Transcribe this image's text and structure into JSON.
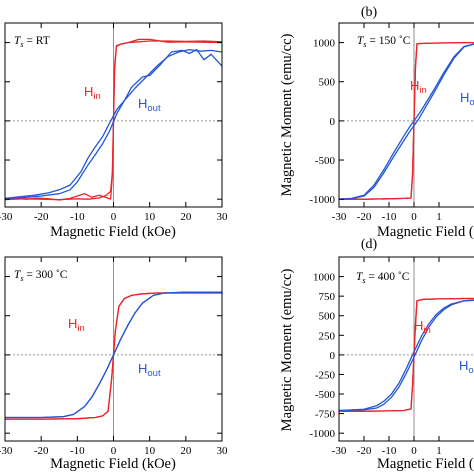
{
  "chart_data": [
    {
      "type": "line",
      "panel_letter": "",
      "sample_label": {
        "symbol": "T",
        "subscript": "s",
        "value": " = RT"
      },
      "xlabel": "Magnetic Field (kOe)",
      "ylabel": "",
      "xlim": [
        -30,
        30
      ],
      "ylim": [
        -1100,
        1250
      ],
      "xticks": [
        "-30",
        "-20",
        "-10",
        "0",
        "10",
        "20",
        "30"
      ],
      "yticks": [],
      "series": [
        {
          "name": "Hin",
          "color": "#e8262b",
          "x": [
            -30,
            -27,
            -24,
            -21,
            -18,
            -15,
            -12,
            -10,
            -8,
            -6,
            -4,
            -2,
            -0.8,
            -0.3,
            0.3,
            0.8,
            2,
            4,
            7,
            10,
            15,
            20,
            25,
            30
          ],
          "y": [
            -1000,
            -990,
            -1000,
            -985,
            -995,
            -1010,
            -990,
            -960,
            -930,
            -975,
            -950,
            -980,
            -1000,
            -700,
            650,
            950,
            980,
            1000,
            1010,
            1020,
            1020,
            1015,
            1020,
            1010
          ]
        },
        {
          "name": "Hin",
          "color": "#e8262b",
          "x": [
            30,
            25,
            20,
            15,
            10,
            7,
            4,
            2,
            0.8,
            0.3,
            -0.3,
            -0.8,
            -2,
            -4,
            -7,
            -10,
            -15,
            -20,
            -25,
            -30
          ],
          "y": [
            1000,
            1005,
            1010,
            1005,
            1040,
            1040,
            1000,
            980,
            960,
            700,
            -650,
            -900,
            -950,
            -985,
            -1000,
            -995,
            -1005,
            -1000,
            -995,
            -1005
          ]
        },
        {
          "name": "Hout",
          "color": "#2457d4",
          "x": [
            -30,
            -25,
            -20,
            -15,
            -12,
            -10,
            -7,
            -5,
            -3,
            -1,
            1,
            3,
            5,
            8,
            10,
            13,
            16,
            19,
            21,
            23,
            25,
            27,
            30
          ],
          "y": [
            -990,
            -980,
            -960,
            -930,
            -880,
            -780,
            -560,
            -430,
            -290,
            -120,
            100,
            260,
            430,
            560,
            580,
            720,
            880,
            900,
            860,
            910,
            780,
            850,
            700
          ]
        },
        {
          "name": "Hout",
          "color": "#2457d4",
          "x": [
            30,
            27,
            24,
            21,
            18,
            15,
            12,
            9,
            6,
            3,
            1,
            -1,
            -3,
            -5,
            -7,
            -9,
            -12,
            -15,
            -18,
            -22,
            -26,
            -30
          ],
          "y": [
            880,
            900,
            890,
            910,
            880,
            820,
            700,
            560,
            420,
            260,
            150,
            -20,
            -200,
            -330,
            -470,
            -650,
            -820,
            -880,
            -920,
            -950,
            -970,
            -990
          ]
        }
      ]
    },
    {
      "type": "line",
      "panel_letter": "(b)",
      "sample_label": {
        "symbol": "T",
        "subscript": "s",
        "value": " = 150 ˚C"
      },
      "xlabel": "Magnetic Field (",
      "ylabel": "Magnetic Moment (emu/cc)",
      "xlim": [
        -30,
        30
      ],
      "ylim": [
        -1100,
        1250
      ],
      "xticks": [
        "-30",
        "-20",
        "-10",
        "0",
        "1"
      ],
      "yticks": [
        "1000",
        "500",
        "0",
        "-500",
        "-1000"
      ],
      "series": [
        {
          "name": "Hin",
          "color": "#e8262b",
          "x": [
            -30,
            -20,
            -10,
            -4,
            -1.2,
            -0.6,
            0,
            0.6,
            1.2,
            4,
            10,
            20,
            30
          ],
          "y": [
            -1000,
            -1000,
            -995,
            -990,
            -985,
            -700,
            0,
            700,
            985,
            990,
            995,
            1000,
            1000
          ]
        },
        {
          "name": "Hin",
          "color": "#e8262b",
          "x": [
            30,
            20,
            10,
            4,
            1.2,
            0.6,
            0,
            -0.6,
            -1.2,
            -4,
            -10,
            -20,
            -30
          ],
          "y": [
            1000,
            1000,
            995,
            990,
            985,
            700,
            0,
            -700,
            -985,
            -990,
            -995,
            -1000,
            -1000
          ]
        },
        {
          "name": "Hout",
          "color": "#2457d4",
          "x": [
            -30,
            -25,
            -20,
            -16,
            -12,
            -8,
            -4,
            -2,
            0,
            2,
            4,
            8,
            12,
            16,
            20,
            25,
            30
          ],
          "y": [
            -1000,
            -990,
            -950,
            -820,
            -620,
            -400,
            -190,
            -90,
            0,
            90,
            190,
            400,
            620,
            820,
            950,
            990,
            1000
          ]
        },
        {
          "name": "Hout",
          "color": "#2457d4",
          "x": [
            30,
            25,
            20,
            16,
            12,
            8,
            4,
            2,
            0,
            -2,
            -4,
            -8,
            -12,
            -16,
            -20,
            -25,
            -30
          ],
          "y": [
            1000,
            990,
            945,
            800,
            590,
            360,
            140,
            30,
            -60,
            -150,
            -250,
            -450,
            -660,
            -850,
            -960,
            -995,
            -1000
          ]
        }
      ]
    },
    {
      "type": "line",
      "panel_letter": "",
      "sample_label": {
        "symbol": "T",
        "subscript": "s",
        "value": " = 300 ˚C"
      },
      "xlabel": "Magnetic Field (kOe)",
      "ylabel": "",
      "xlim": [
        -30,
        30
      ],
      "ylim": [
        -1100,
        1250
      ],
      "xticks": [
        "-30",
        "-20",
        "-10",
        "0",
        "10",
        "20",
        "30"
      ],
      "yticks": [],
      "series": [
        {
          "name": "Hin",
          "color": "#e8262b",
          "x": [
            -30,
            -20,
            -10,
            -5,
            -3,
            -1.5,
            -0.5,
            0.5,
            1.5,
            3,
            5,
            8,
            12,
            20,
            30
          ],
          "y": [
            -820,
            -820,
            -815,
            -800,
            -780,
            -720,
            -300,
            300,
            620,
            720,
            760,
            780,
            790,
            790,
            790
          ]
        },
        {
          "name": "Hin",
          "color": "#e8262b",
          "x": [
            30,
            20,
            12,
            8,
            5,
            3,
            1.5,
            0.5,
            -0.5,
            -1.5,
            -3,
            -5,
            -10,
            -20,
            -30
          ],
          "y": [
            790,
            790,
            790,
            780,
            760,
            720,
            620,
            300,
            -300,
            -720,
            -780,
            -800,
            -815,
            -820,
            -820
          ]
        },
        {
          "name": "Hout",
          "color": "#2457d4",
          "x": [
            -30,
            -20,
            -14,
            -11,
            -8,
            -6,
            -4,
            -2,
            0,
            2,
            4,
            6,
            8,
            11,
            14,
            20,
            30
          ],
          "y": [
            -800,
            -800,
            -790,
            -760,
            -660,
            -540,
            -380,
            -200,
            0,
            200,
            380,
            540,
            660,
            760,
            790,
            800,
            800
          ]
        },
        {
          "name": "Hout",
          "color": "#2457d4",
          "x": [
            30,
            20,
            14,
            11,
            8,
            6,
            4,
            2,
            0,
            -2,
            -4,
            -6,
            -8,
            -11,
            -14,
            -20,
            -30
          ],
          "y": [
            800,
            800,
            790,
            760,
            660,
            540,
            380,
            200,
            0,
            -200,
            -380,
            -540,
            -660,
            -760,
            -790,
            -800,
            -800
          ]
        }
      ]
    },
    {
      "type": "line",
      "panel_letter": "(d)",
      "sample_label": {
        "symbol": "T",
        "subscript": "s",
        "value": " = 400 ˚C"
      },
      "xlabel": "Magnetic Field (",
      "ylabel": "Magnetic Moment (emu/cc)",
      "xlim": [
        -30,
        30
      ],
      "ylim": [
        -1100,
        1250
      ],
      "xticks": [
        "-30",
        "-20",
        "-10",
        "0",
        "1"
      ],
      "yticks": [
        "1000",
        "750",
        "500",
        "250",
        "0",
        "-250",
        "-500",
        "-750",
        "-1000"
      ],
      "series": [
        {
          "name": "Hin",
          "color": "#e8262b",
          "x": [
            -30,
            -20,
            -10,
            -4,
            -1.2,
            -0.6,
            0,
            0.6,
            1.2,
            4,
            10,
            20,
            30
          ],
          "y": [
            -720,
            -720,
            -715,
            -710,
            -690,
            -400,
            0,
            400,
            690,
            710,
            715,
            720,
            720
          ]
        },
        {
          "name": "Hin",
          "color": "#e8262b",
          "x": [
            30,
            20,
            10,
            4,
            1.2,
            0.6,
            0,
            -0.6,
            -1.2,
            -4,
            -10,
            -20,
            -30
          ],
          "y": [
            720,
            720,
            715,
            710,
            690,
            400,
            0,
            -400,
            -690,
            -710,
            -715,
            -720,
            -720
          ]
        },
        {
          "name": "Hout",
          "color": "#2457d4",
          "x": [
            -30,
            -20,
            -15,
            -12,
            -9,
            -6,
            -3,
            0,
            3,
            6,
            9,
            12,
            15,
            20,
            30
          ],
          "y": [
            -710,
            -700,
            -680,
            -630,
            -540,
            -410,
            -230,
            -30,
            180,
            360,
            490,
            580,
            640,
            690,
            710
          ]
        },
        {
          "name": "Hout",
          "color": "#2457d4",
          "x": [
            30,
            20,
            15,
            12,
            9,
            6,
            3,
            0,
            -3,
            -6,
            -9,
            -12,
            -15,
            -20,
            -30
          ],
          "y": [
            710,
            690,
            650,
            600,
            520,
            400,
            240,
            40,
            -170,
            -360,
            -500,
            -590,
            -650,
            -695,
            -710
          ]
        }
      ]
    }
  ],
  "labels": {
    "hin": "H",
    "hin_sub": "in",
    "hout": "H",
    "hout_sub": "out",
    "hout_b": "H",
    "hout_b_sub": "o",
    "hout_d": "H",
    "hout_d_sub": "o"
  }
}
